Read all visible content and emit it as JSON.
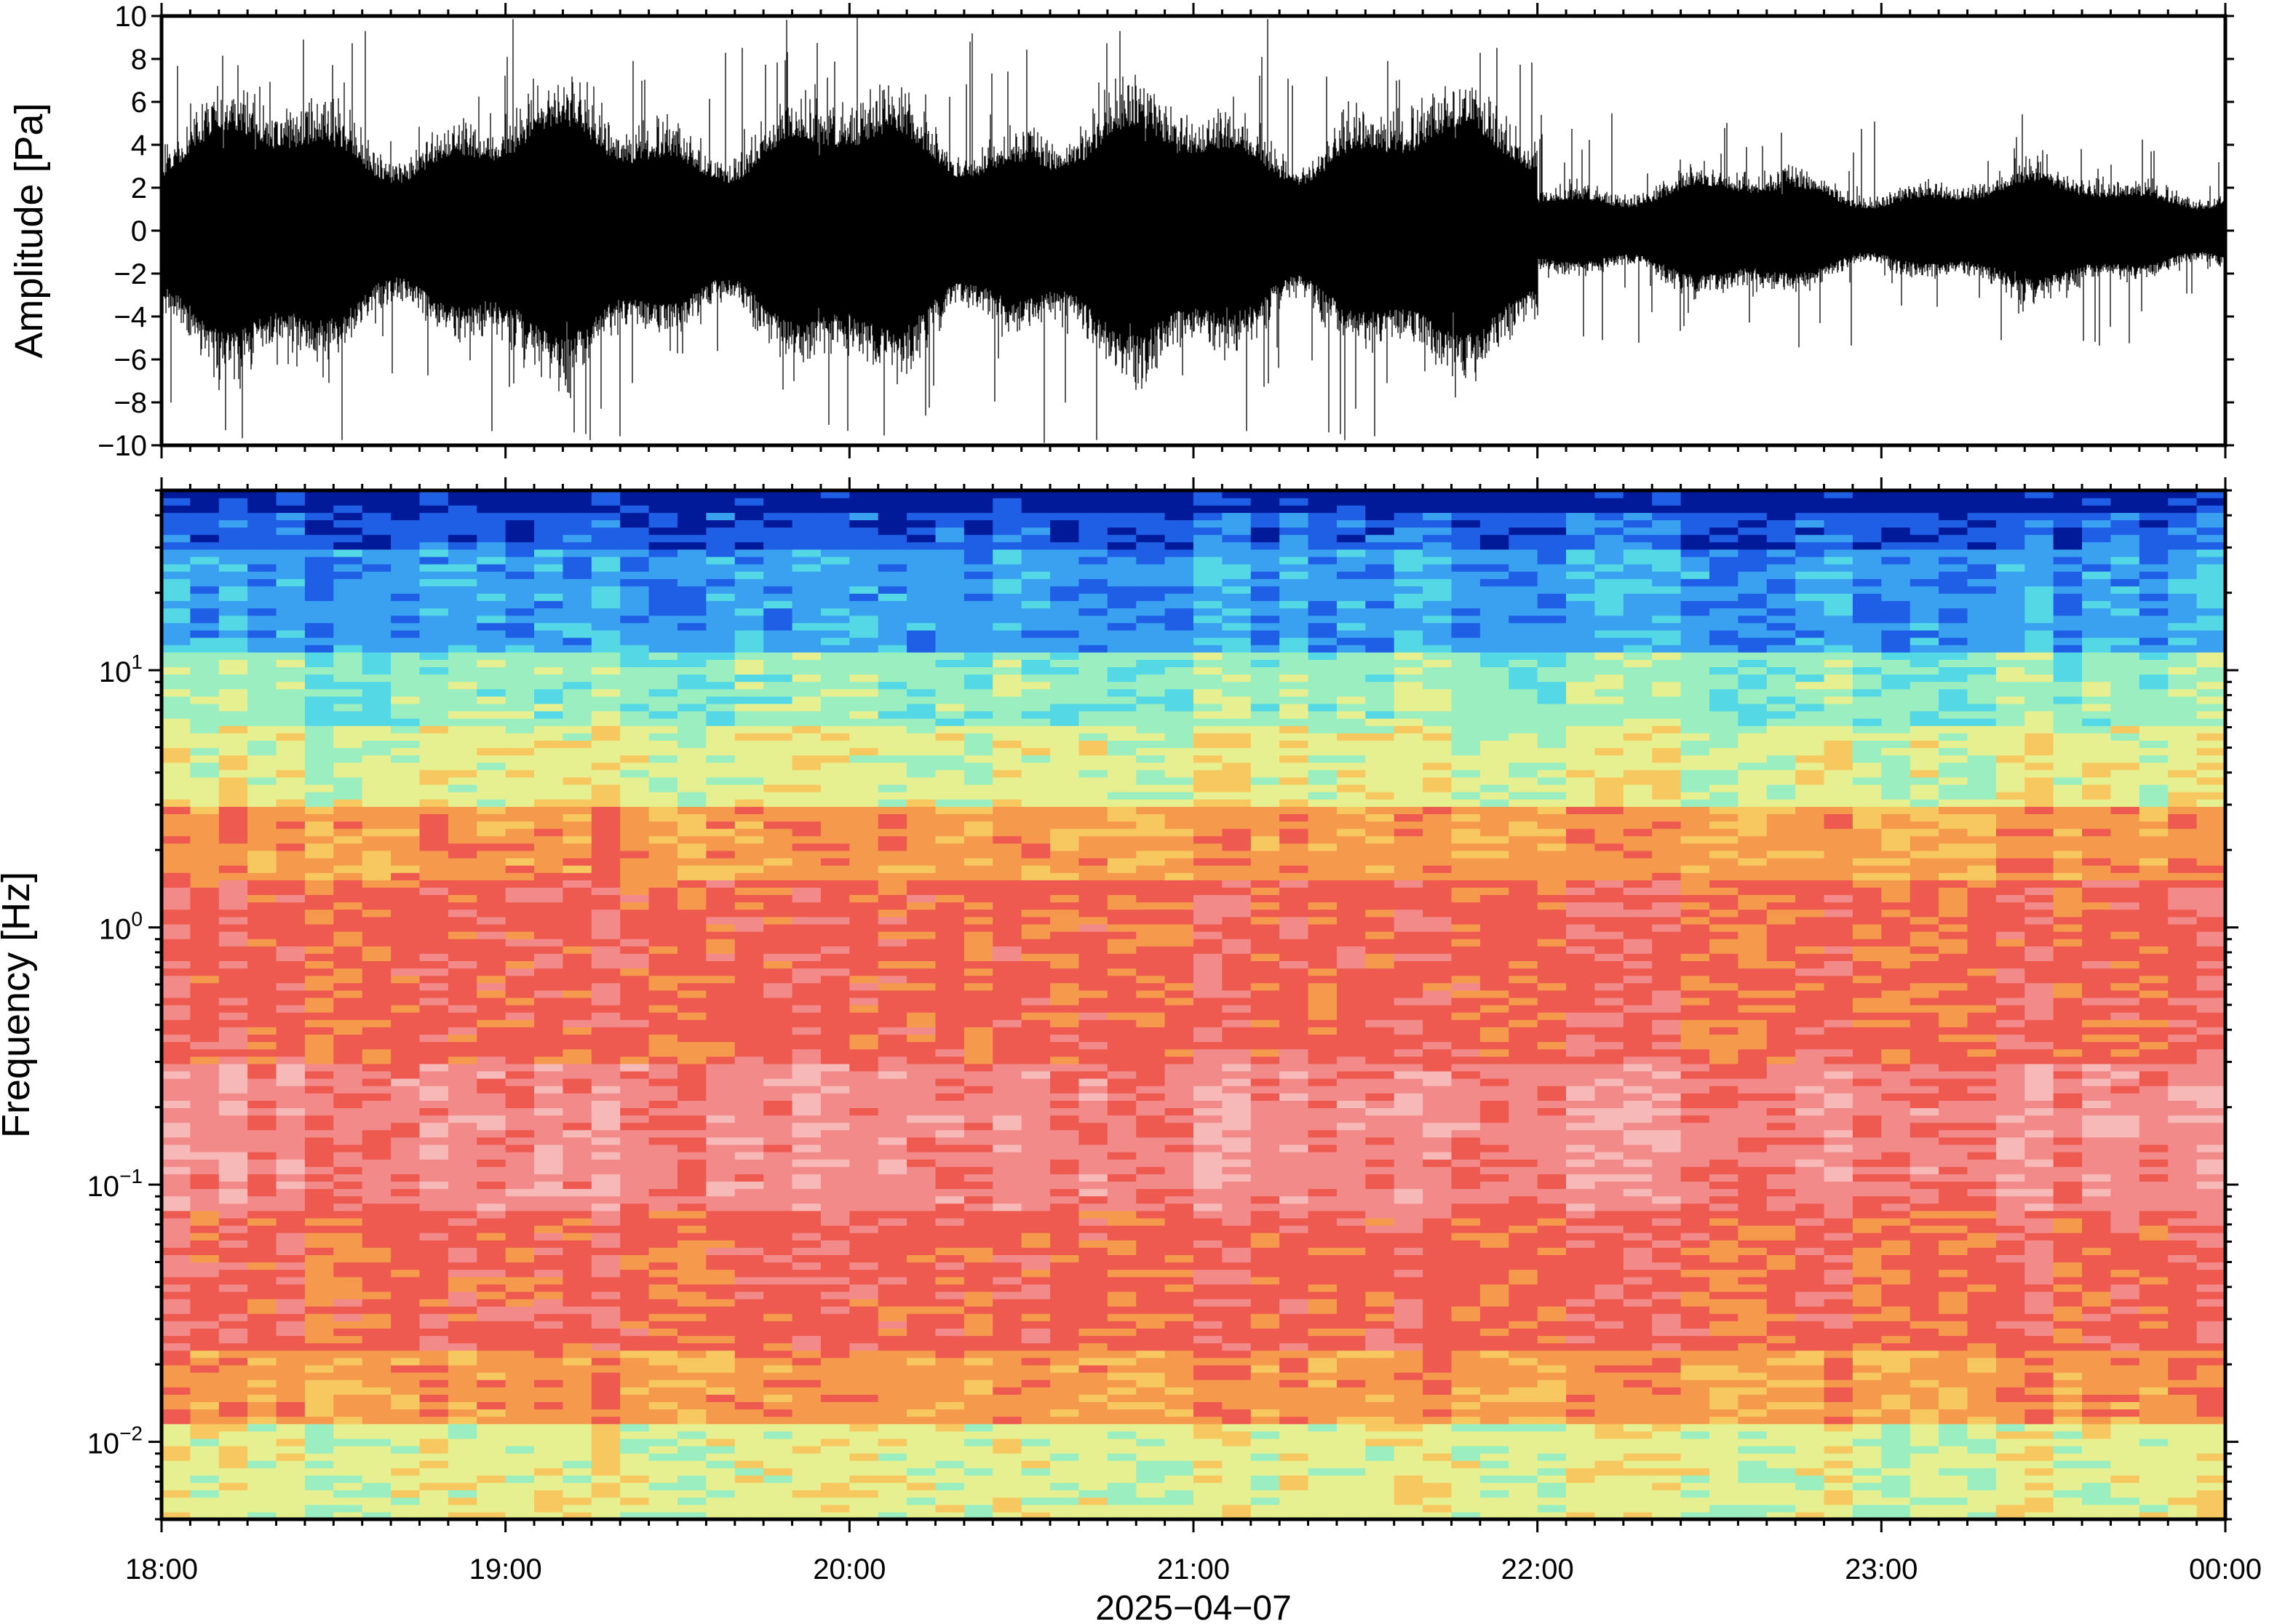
{
  "chart_data": [
    {
      "type": "line",
      "panel": "waveform",
      "ylabel": "Amplitude [Pa]",
      "ylim": [
        -10,
        10
      ],
      "yticks": [
        10,
        8,
        6,
        4,
        2,
        0,
        -2,
        -4,
        -6,
        -8,
        -10
      ],
      "ytick_labels": [
        "10",
        "8",
        "6",
        "4",
        "2",
        "0",
        "−2",
        "−4",
        "−6",
        "−8",
        "−10"
      ],
      "xlim_hours": [
        18,
        24
      ],
      "series": [
        {
          "color": "#000000",
          "envelope_segments": [
            {
              "x_start": "18:00",
              "x_end": "22:00",
              "typical_abs_amplitude": 3.5,
              "peak_abs_amplitude": 10
            },
            {
              "x_start": "22:00",
              "x_end": "00:00",
              "typical_abs_amplitude": 1.6,
              "peak_abs_amplitude": 5.5
            }
          ]
        }
      ]
    },
    {
      "type": "heatmap",
      "panel": "spectrogram",
      "ylabel": "Frequency [Hz]",
      "yscale": "log",
      "ylim": [
        0.005,
        50
      ],
      "yticks": [
        {
          "value": 10,
          "base": "10",
          "exp": "1"
        },
        {
          "value": 1,
          "base": "10",
          "exp": "0"
        },
        {
          "value": 0.1,
          "base": "10",
          "exp": "−1"
        },
        {
          "value": 0.01,
          "base": "10",
          "exp": "−2"
        }
      ],
      "colormap": [
        "#001a99",
        "#1f5fe6",
        "#3aa0f0",
        "#55d8e6",
        "#9aeec0",
        "#e6f090",
        "#f8c860",
        "#f59a4c",
        "#ee5a50",
        "#f28a8a",
        "#f7b8b8"
      ],
      "frequency_bands_hz": [
        {
          "from": 30,
          "to": 50,
          "color": "#1f5fe6"
        },
        {
          "from": 12,
          "to": 30,
          "color": "#3aa0f0"
        },
        {
          "from": 6,
          "to": 12,
          "color": "#9aeec0"
        },
        {
          "from": 3,
          "to": 6,
          "color": "#e6f090"
        },
        {
          "from": 1.5,
          "to": 3,
          "color": "#f59a4c"
        },
        {
          "from": 0.3,
          "to": 1.5,
          "color": "#ee5a50"
        },
        {
          "from": 0.08,
          "to": 0.3,
          "color": "#f28a8a"
        },
        {
          "from": 0.022,
          "to": 0.08,
          "color": "#ee5a50"
        },
        {
          "from": 0.012,
          "to": 0.022,
          "color": "#f5a04a"
        },
        {
          "from": 0.005,
          "to": 0.012,
          "color": "#d8f0a0"
        }
      ],
      "time_bins": 72
    }
  ],
  "x_axis": {
    "type": "time",
    "ticks": [
      {
        "hour": 18,
        "label": "18:00"
      },
      {
        "hour": 19,
        "label": "19:00"
      },
      {
        "hour": 20,
        "label": "20:00"
      },
      {
        "hour": 21,
        "label": "21:00"
      },
      {
        "hour": 22,
        "label": "22:00"
      },
      {
        "hour": 23,
        "label": "23:00"
      },
      {
        "hour": 24,
        "label": "00:00"
      }
    ],
    "date_label": "2025−04−07"
  }
}
